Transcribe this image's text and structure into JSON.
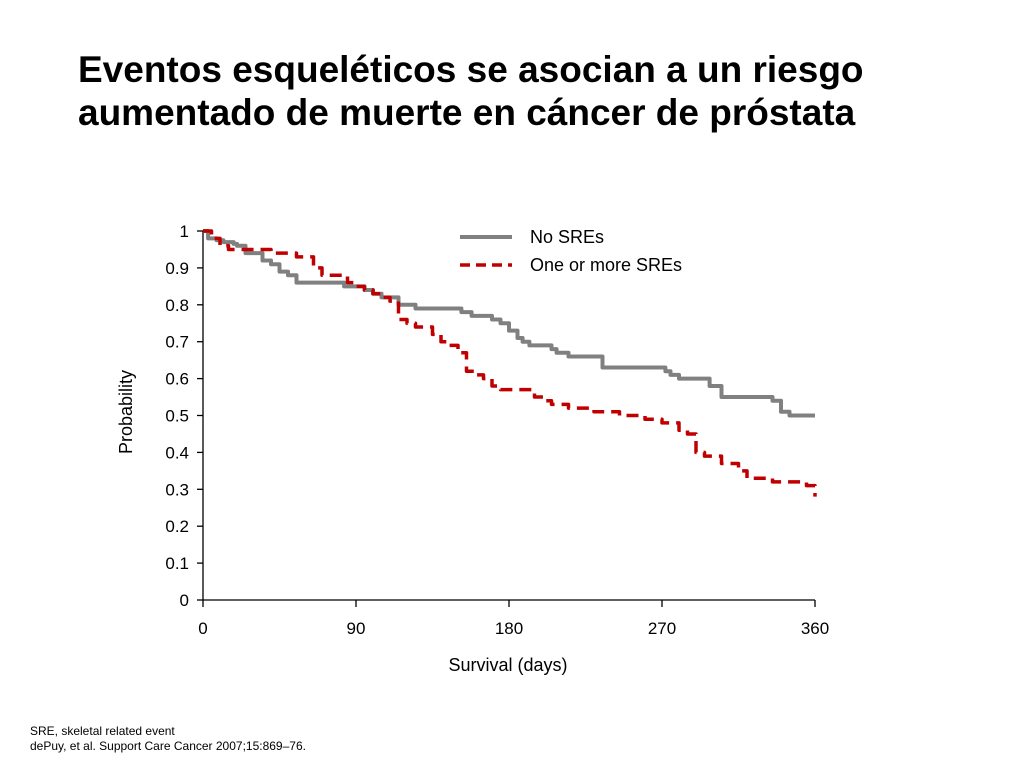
{
  "title": {
    "line1": "Eventos esqueléticos se asocian a un riesgo",
    "line2": "aumentado de muerte en cáncer de próstata"
  },
  "chart_data": {
    "type": "line",
    "xlabel": "Survival (days)",
    "ylabel": "Probability",
    "xlim": [
      0,
      360
    ],
    "ylim": [
      0,
      1
    ],
    "x_ticks": [
      "0",
      "90",
      "180",
      "270",
      "360"
    ],
    "x_tick_values": [
      0,
      90,
      180,
      270,
      360
    ],
    "y_ticks": [
      "0",
      "0.1",
      "0.2",
      "0.3",
      "0.4",
      "0.5",
      "0.6",
      "0.7",
      "0.8",
      "0.9",
      "1"
    ],
    "y_tick_values": [
      0,
      0.1,
      0.2,
      0.3,
      0.4,
      0.5,
      0.6,
      0.7,
      0.8,
      0.9,
      1
    ],
    "grid": false,
    "legend_position": "top-right",
    "series": [
      {
        "name": "No SREs",
        "color": "#808080",
        "style": "solid",
        "x": [
          0,
          3,
          5,
          8,
          12,
          18,
          20,
          25,
          30,
          35,
          38,
          40,
          45,
          48,
          50,
          55,
          60,
          62,
          70,
          80,
          83,
          90,
          95,
          100,
          105,
          110,
          115,
          120,
          125,
          130,
          135,
          140,
          150,
          152,
          155,
          158,
          165,
          170,
          175,
          180,
          185,
          188,
          192,
          200,
          205,
          208,
          215,
          220,
          225,
          228,
          230,
          235,
          240,
          245,
          250,
          255,
          260,
          265,
          270,
          272,
          275,
          280,
          285,
          290,
          295,
          298,
          300,
          305,
          310,
          315,
          320,
          325,
          330,
          333,
          335,
          340,
          345,
          350,
          355,
          360
        ],
        "y": [
          1,
          0.98,
          0.98,
          0.975,
          0.97,
          0.965,
          0.96,
          0.94,
          0.94,
          0.92,
          0.92,
          0.91,
          0.89,
          0.89,
          0.88,
          0.86,
          0.86,
          0.86,
          0.86,
          0.86,
          0.85,
          0.85,
          0.84,
          0.83,
          0.82,
          0.82,
          0.8,
          0.8,
          0.79,
          0.79,
          0.79,
          0.79,
          0.79,
          0.78,
          0.78,
          0.77,
          0.77,
          0.76,
          0.75,
          0.73,
          0.71,
          0.7,
          0.69,
          0.69,
          0.68,
          0.67,
          0.66,
          0.66,
          0.66,
          0.66,
          0.66,
          0.63,
          0.63,
          0.63,
          0.63,
          0.63,
          0.63,
          0.63,
          0.63,
          0.62,
          0.61,
          0.6,
          0.6,
          0.6,
          0.6,
          0.58,
          0.58,
          0.55,
          0.55,
          0.55,
          0.55,
          0.55,
          0.55,
          0.55,
          0.54,
          0.51,
          0.5,
          0.5,
          0.5,
          0.5
        ]
      },
      {
        "name": "One or more SREs",
        "color": "#c00000",
        "style": "dashed",
        "x": [
          0,
          3,
          5,
          10,
          15,
          20,
          30,
          40,
          50,
          55,
          65,
          70,
          75,
          80,
          85,
          90,
          95,
          100,
          105,
          110,
          115,
          120,
          125,
          130,
          135,
          140,
          145,
          150,
          155,
          160,
          165,
          170,
          175,
          180,
          185,
          190,
          195,
          200,
          205,
          210,
          215,
          220,
          225,
          230,
          235,
          240,
          245,
          250,
          255,
          260,
          265,
          270,
          275,
          280,
          285,
          290,
          295,
          300,
          305,
          310,
          315,
          320,
          325,
          330,
          335,
          340,
          345,
          350,
          355,
          360
        ],
        "y": [
          1,
          1,
          0.98,
          0.96,
          0.95,
          0.95,
          0.95,
          0.94,
          0.94,
          0.93,
          0.9,
          0.88,
          0.88,
          0.88,
          0.86,
          0.85,
          0.84,
          0.83,
          0.82,
          0.81,
          0.76,
          0.75,
          0.74,
          0.74,
          0.72,
          0.7,
          0.69,
          0.67,
          0.62,
          0.61,
          0.6,
          0.58,
          0.57,
          0.57,
          0.57,
          0.57,
          0.55,
          0.54,
          0.53,
          0.53,
          0.52,
          0.52,
          0.52,
          0.51,
          0.51,
          0.51,
          0.5,
          0.5,
          0.5,
          0.49,
          0.49,
          0.48,
          0.48,
          0.46,
          0.45,
          0.4,
          0.39,
          0.39,
          0.37,
          0.37,
          0.35,
          0.33,
          0.33,
          0.33,
          0.32,
          0.32,
          0.32,
          0.32,
          0.31,
          0.28
        ]
      }
    ]
  },
  "footnote": {
    "line1": "SRE, skeletal related event",
    "line2": "dePuy, et al. Support Care Cancer 2007;15:869–76."
  }
}
